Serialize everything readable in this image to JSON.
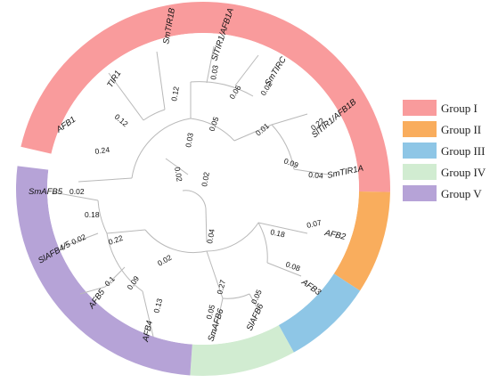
{
  "groups": [
    {
      "label": "Group I",
      "color": "#f99b9c"
    },
    {
      "label": "Group II",
      "color": "#f9ad5d"
    },
    {
      "label": "Group III",
      "color": "#8ec6e6"
    },
    {
      "label": "Group IV",
      "color": "#d1ecd1"
    },
    {
      "label": "Group V",
      "color": "#b6a3d7"
    }
  ],
  "leaves": [
    "SmTIR1B",
    "SlTIR1/AFB1A",
    "SmTIRC",
    "SlTIR1/AFB1B",
    "SmTIR1A",
    "TIR1",
    "AFB1",
    "AFB2",
    "AFB3",
    "SlAFB6",
    "SmAFB6",
    "AFB4",
    "AFB5",
    "SlAFB4/5",
    "SmAFB5"
  ],
  "branch_lengths": [
    "0.03",
    "0.02",
    "0.12",
    "0.06",
    "0.12",
    "0.05",
    "0.01",
    "0.22",
    "0.09",
    "0.04",
    "0.24",
    "0.03",
    "0.02",
    "0.02",
    "0.02",
    "0.18",
    "0.22",
    "0.04",
    "0.18",
    "0.07",
    "0.02",
    "0.02",
    "0.1",
    "0.09",
    "0.08",
    "0.27",
    "0.05",
    "0.05",
    "0.13"
  ]
}
